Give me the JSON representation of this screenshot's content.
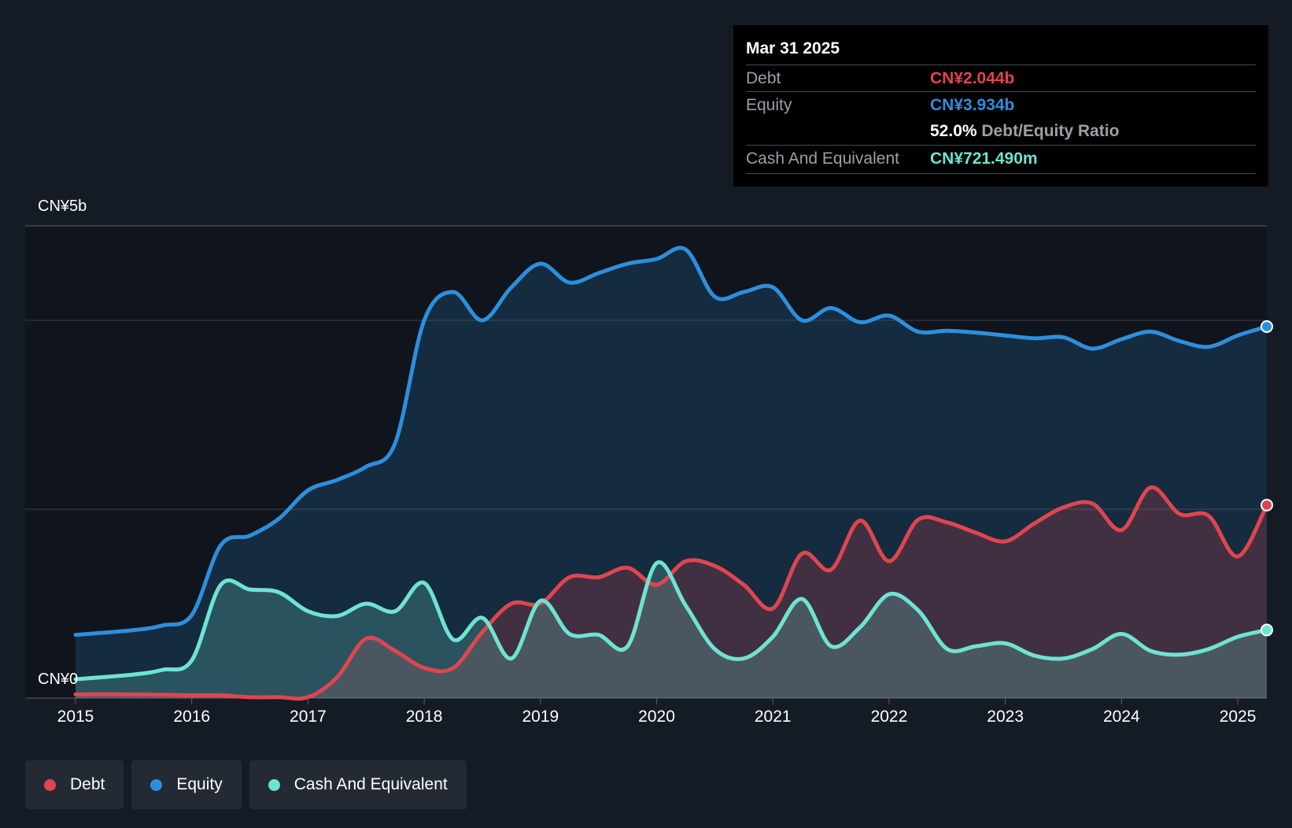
{
  "chart_data": {
    "type": "area",
    "title": "",
    "y_axis": {
      "top_label": "CN¥5b",
      "bottom_label": "CN¥0",
      "ylim": [
        0,
        5.0
      ],
      "gridlines": [
        0,
        2.0,
        4.0,
        5.0
      ]
    },
    "x_ticks": [
      "2015",
      "2016",
      "2017",
      "2018",
      "2019",
      "2020",
      "2021",
      "2022",
      "2023",
      "2024",
      "2025"
    ],
    "x_range": [
      2015.0,
      2025.25
    ],
    "series": [
      {
        "name": "Equity",
        "color": "#2d8fdc",
        "points": [
          [
            2015.0,
            0.67
          ],
          [
            2015.5,
            0.72
          ],
          [
            2015.75,
            0.77
          ],
          [
            2016.0,
            0.88
          ],
          [
            2016.25,
            1.62
          ],
          [
            2016.5,
            1.72
          ],
          [
            2016.75,
            1.9
          ],
          [
            2017.0,
            2.2
          ],
          [
            2017.25,
            2.31
          ],
          [
            2017.5,
            2.45
          ],
          [
            2017.75,
            2.7
          ],
          [
            2018.0,
            4.0
          ],
          [
            2018.25,
            4.3
          ],
          [
            2018.5,
            4.0
          ],
          [
            2018.75,
            4.35
          ],
          [
            2019.0,
            4.6
          ],
          [
            2019.25,
            4.4
          ],
          [
            2019.5,
            4.5
          ],
          [
            2019.75,
            4.6
          ],
          [
            2020.0,
            4.65
          ],
          [
            2020.25,
            4.75
          ],
          [
            2020.5,
            4.25
          ],
          [
            2020.75,
            4.3
          ],
          [
            2021.0,
            4.35
          ],
          [
            2021.25,
            4.0
          ],
          [
            2021.5,
            4.13
          ],
          [
            2021.75,
            3.98
          ],
          [
            2022.0,
            4.05
          ],
          [
            2022.25,
            3.88
          ],
          [
            2022.5,
            3.89
          ],
          [
            2022.75,
            3.87
          ],
          [
            2023.0,
            3.84
          ],
          [
            2023.25,
            3.81
          ],
          [
            2023.5,
            3.82
          ],
          [
            2023.75,
            3.7
          ],
          [
            2024.0,
            3.8
          ],
          [
            2024.25,
            3.88
          ],
          [
            2024.5,
            3.78
          ],
          [
            2024.75,
            3.72
          ],
          [
            2025.0,
            3.84
          ],
          [
            2025.25,
            3.934
          ]
        ]
      },
      {
        "name": "Debt",
        "color": "#e0454f",
        "points": [
          [
            2015.0,
            0.04
          ],
          [
            2015.5,
            0.04
          ],
          [
            2016.0,
            0.03
          ],
          [
            2016.25,
            0.03
          ],
          [
            2016.5,
            0.01
          ],
          [
            2016.75,
            0.01
          ],
          [
            2017.0,
            0.01
          ],
          [
            2017.25,
            0.22
          ],
          [
            2017.5,
            0.63
          ],
          [
            2017.75,
            0.5
          ],
          [
            2018.0,
            0.32
          ],
          [
            2018.25,
            0.32
          ],
          [
            2018.5,
            0.7
          ],
          [
            2018.75,
            1.0
          ],
          [
            2019.0,
            1.0
          ],
          [
            2019.25,
            1.28
          ],
          [
            2019.5,
            1.28
          ],
          [
            2019.75,
            1.38
          ],
          [
            2020.0,
            1.2
          ],
          [
            2020.25,
            1.45
          ],
          [
            2020.5,
            1.4
          ],
          [
            2020.75,
            1.2
          ],
          [
            2021.0,
            0.95
          ],
          [
            2021.25,
            1.53
          ],
          [
            2021.5,
            1.36
          ],
          [
            2021.75,
            1.88
          ],
          [
            2022.0,
            1.45
          ],
          [
            2022.25,
            1.89
          ],
          [
            2022.5,
            1.86
          ],
          [
            2022.75,
            1.75
          ],
          [
            2023.0,
            1.66
          ],
          [
            2023.25,
            1.85
          ],
          [
            2023.5,
            2.02
          ],
          [
            2023.75,
            2.06
          ],
          [
            2024.0,
            1.78
          ],
          [
            2024.25,
            2.23
          ],
          [
            2024.5,
            1.95
          ],
          [
            2024.75,
            1.93
          ],
          [
            2025.0,
            1.5
          ],
          [
            2025.25,
            2.044
          ]
        ]
      },
      {
        "name": "Cash And Equivalent",
        "color": "#6fe3d2",
        "points": [
          [
            2015.0,
            0.2
          ],
          [
            2015.5,
            0.25
          ],
          [
            2015.75,
            0.3
          ],
          [
            2016.0,
            0.4
          ],
          [
            2016.25,
            1.2
          ],
          [
            2016.5,
            1.15
          ],
          [
            2016.75,
            1.12
          ],
          [
            2017.0,
            0.92
          ],
          [
            2017.25,
            0.87
          ],
          [
            2017.5,
            1.0
          ],
          [
            2017.75,
            0.92
          ],
          [
            2018.0,
            1.22
          ],
          [
            2018.25,
            0.62
          ],
          [
            2018.5,
            0.85
          ],
          [
            2018.75,
            0.42
          ],
          [
            2019.0,
            1.03
          ],
          [
            2019.25,
            0.68
          ],
          [
            2019.5,
            0.67
          ],
          [
            2019.75,
            0.55
          ],
          [
            2020.0,
            1.43
          ],
          [
            2020.25,
            0.98
          ],
          [
            2020.5,
            0.52
          ],
          [
            2020.75,
            0.42
          ],
          [
            2021.0,
            0.65
          ],
          [
            2021.25,
            1.05
          ],
          [
            2021.5,
            0.55
          ],
          [
            2021.75,
            0.75
          ],
          [
            2022.0,
            1.1
          ],
          [
            2022.25,
            0.93
          ],
          [
            2022.5,
            0.52
          ],
          [
            2022.75,
            0.55
          ],
          [
            2023.0,
            0.58
          ],
          [
            2023.25,
            0.45
          ],
          [
            2023.5,
            0.42
          ],
          [
            2023.75,
            0.52
          ],
          [
            2024.0,
            0.68
          ],
          [
            2024.25,
            0.5
          ],
          [
            2024.5,
            0.46
          ],
          [
            2024.75,
            0.52
          ],
          [
            2025.0,
            0.65
          ],
          [
            2025.25,
            0.72149
          ]
        ]
      }
    ],
    "legend": [
      "Debt",
      "Equity",
      "Cash And Equivalent"
    ],
    "legend_position": "bottom-left"
  },
  "tooltip": {
    "date": "Mar 31 2025",
    "rows": [
      {
        "label": "Debt",
        "value": "CN¥2.044b",
        "color": "#e0454f"
      },
      {
        "label": "Equity",
        "value": "CN¥3.934b",
        "color": "#2d8fdc"
      },
      {
        "label": "",
        "value": "52.0%",
        "extra": "Debt/Equity Ratio",
        "color": "#ffffff"
      },
      {
        "label": "Cash And Equivalent",
        "value": "CN¥721.490m",
        "color": "#6fe3d2"
      }
    ]
  },
  "legend": {
    "items": [
      {
        "label": "Debt",
        "color": "#e0454f"
      },
      {
        "label": "Equity",
        "color": "#2d8fdc"
      },
      {
        "label": "Cash And Equivalent",
        "color": "#6fe3d2"
      }
    ]
  }
}
